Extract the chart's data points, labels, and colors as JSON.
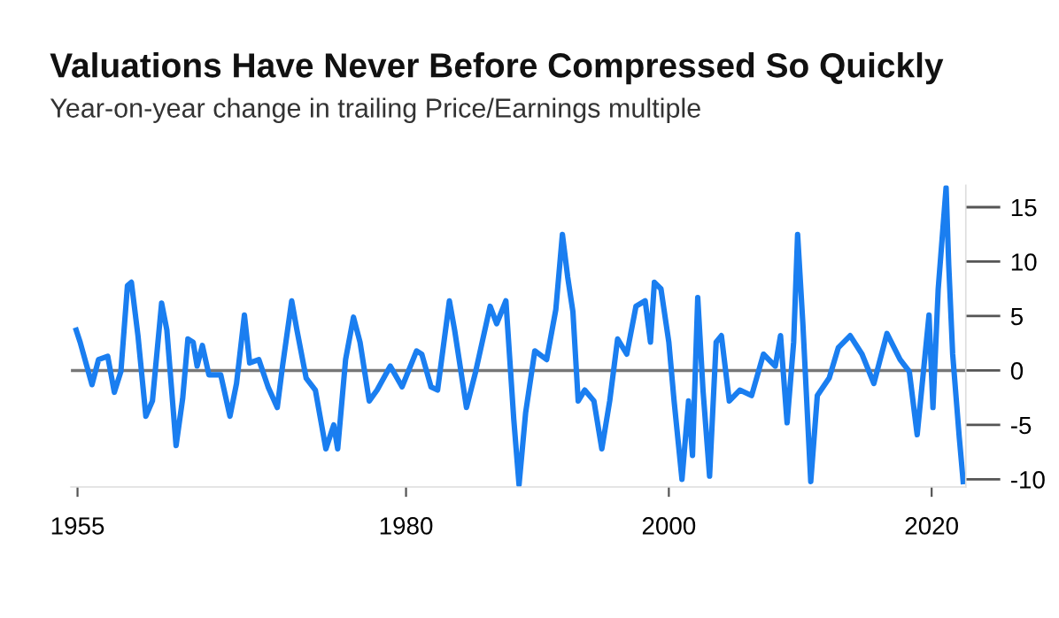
{
  "chart_data": {
    "type": "line",
    "title": "Valuations Have Never Before Compressed So Quickly",
    "subtitle": "Year-on-year change in trailing Price/Earnings multiple",
    "x": [
      1954.9,
      1955.2,
      1955.5,
      1956.1,
      1956.6,
      1957.3,
      1957.8,
      1958.3,
      1958.8,
      1959.1,
      1959.6,
      1960.2,
      1960.7,
      1961.4,
      1961.8,
      1962.5,
      1963.0,
      1963.4,
      1963.8,
      1964.1,
      1964.5,
      1965.0,
      1965.9,
      1966.6,
      1967.1,
      1967.7,
      1968.1,
      1968.8,
      1969.5,
      1970.2,
      1970.6,
      1971.3,
      1971.7,
      1972.4,
      1973.1,
      1973.9,
      1974.5,
      1974.8,
      1975.4,
      1976.0,
      1976.5,
      1977.2,
      1977.8,
      1978.8,
      1979.7,
      1980.8,
      1981.2,
      1981.9,
      1982.4,
      1983.3,
      1983.7,
      1984.6,
      1985.3,
      1986.4,
      1986.9,
      1987.6,
      1988.2,
      1988.6,
      1989.1,
      1989.8,
      1990.7,
      1991.4,
      1991.9,
      1992.3,
      1992.7,
      1993.1,
      1993.6,
      1994.3,
      1994.9,
      1995.5,
      1996.1,
      1996.8,
      1997.5,
      1998.2,
      1998.6,
      1998.9,
      1999.4,
      2000.0,
      2000.4,
      2001.0,
      2001.5,
      2001.8,
      2002.2,
      2002.6,
      2003.1,
      2003.6,
      2004.0,
      2004.6,
      2005.4,
      2006.3,
      2007.2,
      2008.1,
      2008.5,
      2009.0,
      2009.5,
      2009.8,
      2010.2,
      2010.8,
      2011.3,
      2012.2,
      2012.9,
      2013.8,
      2014.7,
      2015.6,
      2016.6,
      2017.6,
      2018.3,
      2018.9,
      2019.8,
      2020.1,
      2020.5,
      2021.1,
      2021.3,
      2021.6,
      2022.1,
      2022.4
    ],
    "series": [
      {
        "color": "#1a7ef0",
        "values": [
          3.7,
          2.6,
          1.3,
          -1.3,
          1.0,
          1.3,
          -2.0,
          -0.1,
          7.8,
          8.1,
          3.2,
          -4.2,
          -2.8,
          6.2,
          3.7,
          -6.9,
          -2.6,
          2.9,
          2.6,
          0.4,
          2.3,
          -0.4,
          -0.4,
          -4.2,
          -1.2,
          5.1,
          0.7,
          1.0,
          -1.5,
          -3.4,
          0.4,
          6.4,
          3.7,
          -0.7,
          -1.8,
          -7.2,
          -5.0,
          -7.2,
          1.0,
          4.9,
          2.6,
          -2.8,
          -1.8,
          0.4,
          -1.5,
          1.8,
          1.5,
          -1.5,
          -1.8,
          6.4,
          3.7,
          -3.4,
          -0.1,
          5.9,
          4.3,
          6.4,
          -4.5,
          -10.5,
          -3.9,
          1.8,
          1.0,
          5.6,
          12.5,
          8.6,
          5.4,
          -2.8,
          -1.8,
          -2.8,
          -7.2,
          -2.8,
          2.9,
          1.5,
          5.9,
          6.4,
          2.6,
          8.1,
          7.5,
          2.6,
          -2.8,
          -10.0,
          -2.8,
          -7.8,
          6.7,
          -1.8,
          -9.7,
          2.6,
          3.2,
          -2.8,
          -1.8,
          -2.3,
          1.5,
          0.4,
          3.2,
          -4.8,
          2.6,
          12.5,
          4.3,
          -10.2,
          -2.3,
          -0.7,
          2.1,
          3.2,
          1.5,
          -1.2,
          3.4,
          1.0,
          -0.1,
          -5.9,
          5.1,
          -3.4,
          7.5,
          16.8,
          9.7,
          1.5,
          -6.1,
          -10.2
        ]
      }
    ],
    "xlim": [
      1954.5,
      2022.6
    ],
    "xticks": [
      1955,
      1980,
      2000,
      2020
    ],
    "ylim": [
      -10.7,
      17
    ],
    "yticks": [
      15,
      10,
      5,
      0,
      -5,
      -10
    ],
    "ref_lines": [
      {
        "axis": "y",
        "value": 0,
        "color": "#777777"
      }
    ],
    "marker": "none",
    "line_style": "solid"
  }
}
